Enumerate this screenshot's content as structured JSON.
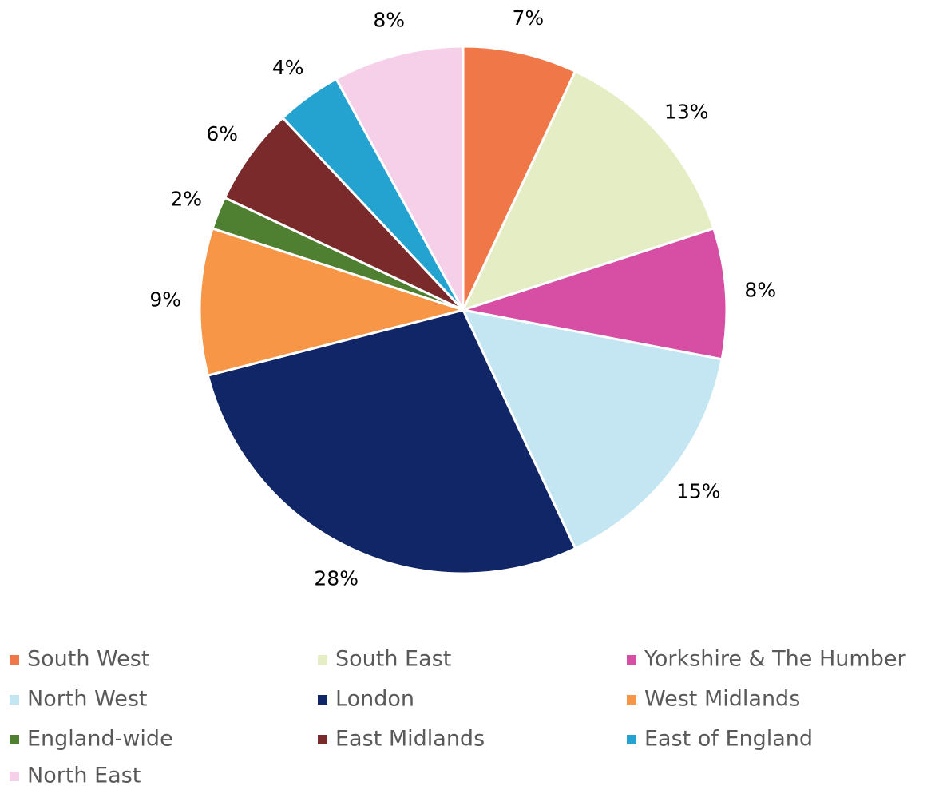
{
  "chart_data": {
    "type": "pie",
    "categories": [
      "South West",
      "South East",
      "Yorkshire & The Humber",
      "North West",
      "London",
      "West Midlands",
      "England-wide",
      "East Midlands",
      "East of England",
      "North East"
    ],
    "values": [
      7,
      13,
      8,
      15,
      28,
      9,
      2,
      6,
      4,
      8
    ],
    "value_labels": [
      "7%",
      "13%",
      "8%",
      "15%",
      "28%",
      "9%",
      "2%",
      "6%",
      "4%",
      "8%"
    ],
    "colors": [
      "#f07848",
      "#e4edc3",
      "#d64fa5",
      "#c3e6f2",
      "#112667",
      "#f79646",
      "#4f7f31",
      "#7a2a2a",
      "#24a3d1",
      "#f6cfe8"
    ],
    "legend": "bottom"
  }
}
